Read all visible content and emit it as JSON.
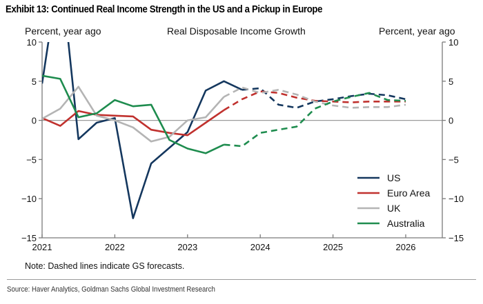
{
  "header": {
    "exhibit_title": "Exhibit 13: Continued Real Income Strength in the US and a Pickup in Europe",
    "left_axis_label": "Percent, year ago",
    "chart_title": "Real Disposable Income Growth",
    "right_axis_label": "Percent, year ago"
  },
  "footer": {
    "note": "Note: Dashed lines indicate GS forecasts.",
    "source": "Source: Haver Analytics, Goldman Sachs Global Investment Research"
  },
  "chart_data": {
    "type": "line",
    "title": "Real Disposable Income Growth",
    "xlabel": "",
    "ylabel": "Percent, year ago",
    "y2label": "Percent, year ago",
    "ylim": [
      -15,
      10
    ],
    "xlim": [
      2021.0,
      2026.5
    ],
    "yticks": [
      10,
      5,
      0,
      -5,
      -10,
      -15
    ],
    "ytick_labels": [
      "10",
      "5",
      "0",
      "−5",
      "−10",
      "−15"
    ],
    "xticks": [
      2021,
      2022,
      2023,
      2024,
      2025,
      2026
    ],
    "xtick_labels": [
      "2021",
      "2022",
      "2023",
      "2024",
      "2025",
      "2026"
    ],
    "grid": false,
    "zero_line": true,
    "legend_position": "bottom-right",
    "note": "Dashed lines indicate GS forecasts",
    "x": [
      2021.0,
      2021.25,
      2021.5,
      2021.75,
      2022.0,
      2022.25,
      2022.5,
      2022.75,
      2023.0,
      2023.25,
      2023.5,
      2023.75,
      2024.0,
      2024.25,
      2024.5,
      2024.75,
      2025.0,
      2025.25,
      2025.5,
      2025.75,
      2026.0
    ],
    "series": [
      {
        "name": "US",
        "color": "#14375e",
        "values": [
          4.7,
          20.0,
          -2.4,
          -0.3,
          0.3,
          -12.5,
          -5.5,
          -3.5,
          -1.5,
          3.8,
          5.0,
          3.9,
          4.1,
          2.0,
          1.6,
          2.4,
          2.7,
          3.1,
          3.4,
          3.2,
          2.7
        ],
        "forecast_from_index": 11
      },
      {
        "name": "Euro Area",
        "color": "#c0312e",
        "values": [
          0.3,
          -0.7,
          1.2,
          0.7,
          0.6,
          0.5,
          -1.2,
          -1.6,
          -1.9,
          -0.3,
          1.3,
          2.7,
          3.7,
          3.5,
          2.9,
          2.5,
          2.4,
          2.3,
          2.4,
          2.4,
          2.4
        ],
        "forecast_from_index": 10
      },
      {
        "name": "UK",
        "color": "#b4b4b4",
        "values": [
          0.2,
          1.5,
          4.3,
          0.6,
          0.0,
          -0.9,
          -2.7,
          -2.1,
          0.0,
          0.4,
          3.0,
          4.2,
          3.5,
          3.9,
          3.3,
          2.4,
          1.9,
          1.6,
          1.7,
          1.7,
          2.0
        ],
        "forecast_from_index": 10
      },
      {
        "name": "Australia",
        "color": "#1e8c4e",
        "values": [
          5.7,
          5.3,
          0.4,
          0.9,
          2.6,
          1.8,
          2.0,
          -2.5,
          -3.6,
          -4.2,
          -3.1,
          -3.3,
          -1.6,
          -1.2,
          -0.8,
          1.5,
          2.4,
          3.0,
          3.5,
          2.6,
          2.5
        ],
        "forecast_from_index": 10
      }
    ]
  }
}
